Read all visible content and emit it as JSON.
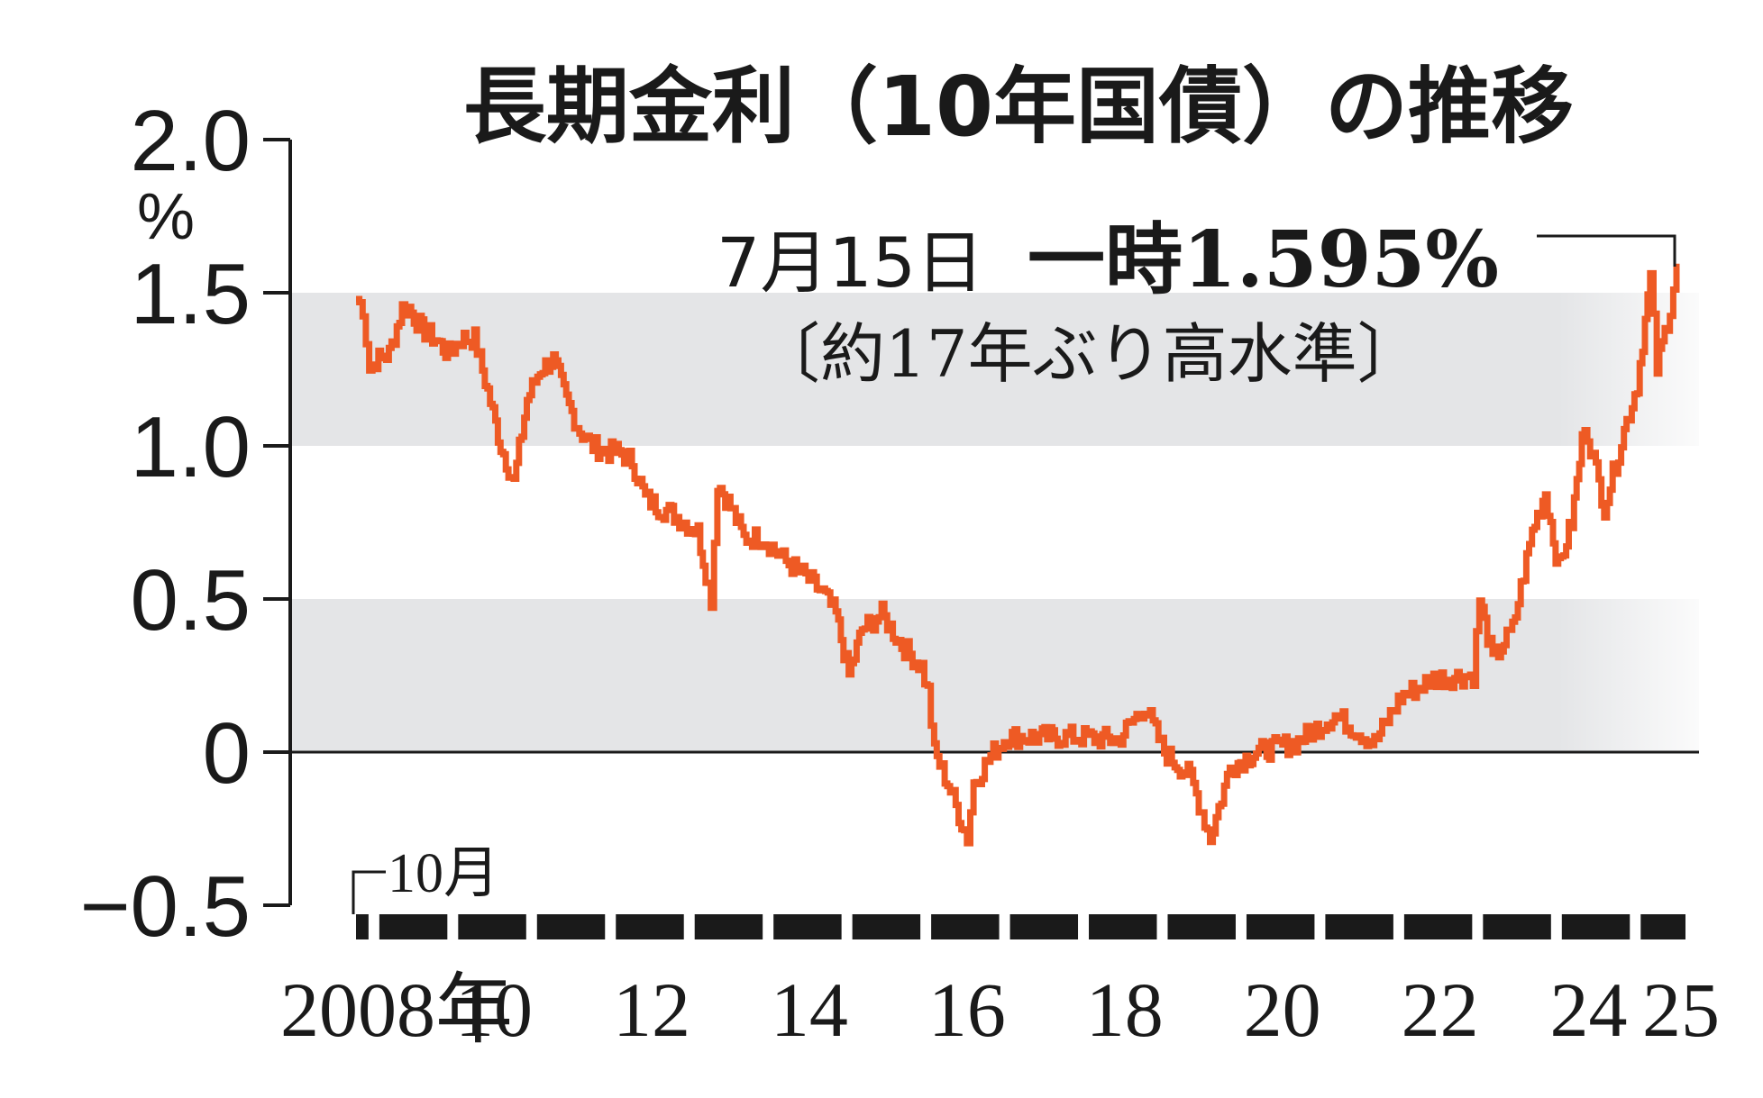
{
  "chart_data": {
    "type": "line",
    "title": "長期金利（10年国債）の推移",
    "ylabel": "",
    "yunit": "%",
    "xlabel": "",
    "ylim": [
      -0.5,
      2.0
    ],
    "yticks": [
      {
        "value": 2.0,
        "label": "2.0"
      },
      {
        "value": 1.5,
        "label": "1.5"
      },
      {
        "value": 1.0,
        "label": "1.0"
      },
      {
        "value": 0.5,
        "label": "0.5"
      },
      {
        "value": 0,
        "label": "0"
      },
      {
        "value": -0.5,
        "label": "−0.5"
      }
    ],
    "xlim": [
      "2008-10",
      "2025-07"
    ],
    "xticks": [
      {
        "year": 2008,
        "label": "2008年"
      },
      {
        "year": 2010,
        "label": "10"
      },
      {
        "year": 2012,
        "label": "12"
      },
      {
        "year": 2014,
        "label": "14"
      },
      {
        "year": 2016,
        "label": "16"
      },
      {
        "year": 2018,
        "label": "18"
      },
      {
        "year": 2020,
        "label": "20"
      },
      {
        "year": 2022,
        "label": "22"
      },
      {
        "year": 2024,
        "label": "24"
      },
      {
        "year": 2025,
        "label": "25"
      }
    ],
    "start_marker_label": "10月",
    "shaded_bands": [
      [
        0,
        0.5
      ],
      [
        1.0,
        1.5
      ]
    ],
    "grid": false,
    "series": [
      {
        "name": "",
        "color": "#ee5a24",
        "points": [
          [
            "2008-10",
            1.48
          ],
          [
            "2008-11",
            1.45
          ],
          [
            "2008-12",
            1.25
          ],
          [
            "2009-01",
            1.28
          ],
          [
            "2009-03",
            1.3
          ],
          [
            "2009-05",
            1.45
          ],
          [
            "2009-06",
            1.45
          ],
          [
            "2009-08",
            1.38
          ],
          [
            "2009-10",
            1.35
          ],
          [
            "2009-12",
            1.3
          ],
          [
            "2010-02",
            1.35
          ],
          [
            "2010-04",
            1.35
          ],
          [
            "2010-06",
            1.18
          ],
          [
            "2010-08",
            1.0
          ],
          [
            "2010-10",
            0.88
          ],
          [
            "2010-12",
            1.15
          ],
          [
            "2011-02",
            1.25
          ],
          [
            "2011-04",
            1.28
          ],
          [
            "2011-06",
            1.15
          ],
          [
            "2011-08",
            1.05
          ],
          [
            "2011-10",
            1.0
          ],
          [
            "2011-12",
            0.98
          ],
          [
            "2012-02",
            0.98
          ],
          [
            "2012-04",
            0.95
          ],
          [
            "2012-06",
            0.83
          ],
          [
            "2012-08",
            0.8
          ],
          [
            "2012-10",
            0.78
          ],
          [
            "2012-12",
            0.75
          ],
          [
            "2013-02",
            0.72
          ],
          [
            "2013-04",
            0.5
          ],
          [
            "2013-05",
            0.88
          ],
          [
            "2013-07",
            0.8
          ],
          [
            "2013-09",
            0.7
          ],
          [
            "2013-12",
            0.7
          ],
          [
            "2014-03",
            0.63
          ],
          [
            "2014-06",
            0.58
          ],
          [
            "2014-09",
            0.52
          ],
          [
            "2014-11",
            0.45
          ],
          [
            "2015-01",
            0.25
          ],
          [
            "2015-03",
            0.4
          ],
          [
            "2015-06",
            0.45
          ],
          [
            "2015-09",
            0.35
          ],
          [
            "2015-12",
            0.28
          ],
          [
            "2016-01",
            0.2
          ],
          [
            "2016-02",
            0.0
          ],
          [
            "2016-04",
            -0.1
          ],
          [
            "2016-07",
            -0.28
          ],
          [
            "2016-08",
            -0.1
          ],
          [
            "2016-11",
            0.0
          ],
          [
            "2017-01",
            0.05
          ],
          [
            "2017-06",
            0.05
          ],
          [
            "2017-12",
            0.05
          ],
          [
            "2018-06",
            0.04
          ],
          [
            "2018-10",
            0.15
          ],
          [
            "2019-01",
            0.0
          ],
          [
            "2019-05",
            -0.08
          ],
          [
            "2019-08",
            -0.28
          ],
          [
            "2019-11",
            -0.05
          ],
          [
            "2020-03",
            0.0
          ],
          [
            "2020-09",
            0.03
          ],
          [
            "2021-03",
            0.12
          ],
          [
            "2021-09",
            0.03
          ],
          [
            "2022-01",
            0.18
          ],
          [
            "2022-06",
            0.24
          ],
          [
            "2022-12",
            0.25
          ],
          [
            "2023-01",
            0.5
          ],
          [
            "2023-03",
            0.3
          ],
          [
            "2023-06",
            0.4
          ],
          [
            "2023-09",
            0.72
          ],
          [
            "2023-11",
            0.85
          ],
          [
            "2024-01",
            0.6
          ],
          [
            "2024-03",
            0.75
          ],
          [
            "2024-05",
            1.08
          ],
          [
            "2024-08",
            0.8
          ],
          [
            "2024-11",
            1.05
          ],
          [
            "2025-01",
            1.2
          ],
          [
            "2025-03",
            1.55
          ],
          [
            "2025-04",
            1.25
          ],
          [
            "2025-06",
            1.45
          ],
          [
            "2025-07",
            1.595
          ]
        ]
      }
    ],
    "annotations": [
      {
        "date_label": "7月15日",
        "value_label": "一時1.595%",
        "note": "〔約17年ぶり高水準〕",
        "x": "2025-07",
        "y": 1.595
      }
    ]
  }
}
